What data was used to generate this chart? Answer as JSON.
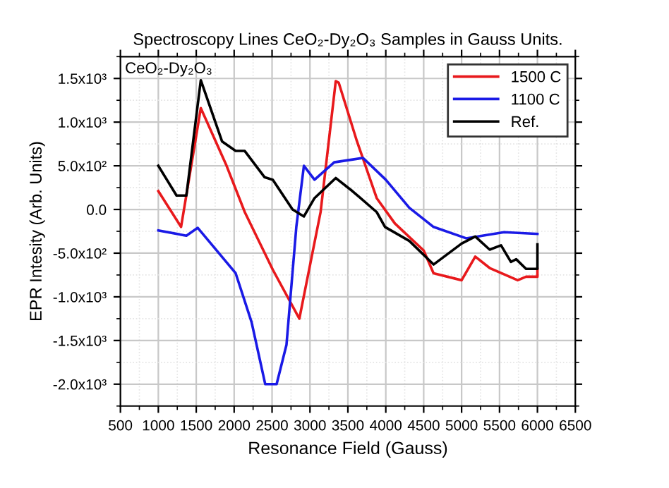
{
  "chart_data": {
    "type": "line",
    "title": "Spectroscopy Lines CeO₂-Dy₂O₃ Samples in Gauss Units.",
    "xlabel": "Resonance Field (Gauss)",
    "ylabel": "EPR Intesity (Arb. Units)",
    "annotations": [
      "CeO₂-Dy₂O₃"
    ],
    "series": [
      {
        "name": "1500 C",
        "color": "#e8191c",
        "x": [
          1000,
          1300,
          1560,
          1900,
          2140,
          2510,
          2860,
          3140,
          3340,
          3380,
          3620,
          3880,
          4120,
          4500,
          4630,
          5000,
          5180,
          5370,
          5740,
          5850,
          6000,
          6000
        ],
        "values": [
          210,
          -200,
          1160,
          500,
          -30,
          -690,
          -1250,
          -30,
          1470,
          1450,
          780,
          130,
          -160,
          -470,
          -730,
          -810,
          -540,
          -670,
          -810,
          -770,
          -770,
          -680
        ]
      },
      {
        "name": "1100 C",
        "color": "#1a1ae6",
        "x": [
          1000,
          1370,
          1520,
          2020,
          2230,
          2410,
          2560,
          2690,
          2820,
          2920,
          3060,
          3320,
          3700,
          4000,
          4310,
          4630,
          5060,
          5560,
          6000
        ],
        "values": [
          -240,
          -300,
          -210,
          -730,
          -1290,
          -2000,
          -2000,
          -1550,
          -200,
          500,
          340,
          540,
          590,
          340,
          20,
          -200,
          -330,
          -260,
          -280
        ]
      },
      {
        "name": "Ref.",
        "color": "#000000",
        "x": [
          1000,
          1240,
          1370,
          1560,
          1840,
          2020,
          2140,
          2400,
          2510,
          2770,
          2920,
          3060,
          3340,
          3560,
          3880,
          3990,
          4310,
          4630,
          5000,
          5180,
          5370,
          5520,
          5650,
          5720,
          5850,
          6000,
          6000
        ],
        "values": [
          500,
          160,
          160,
          1480,
          780,
          670,
          670,
          370,
          340,
          0,
          -80,
          130,
          360,
          210,
          -30,
          -200,
          -360,
          -630,
          -390,
          -310,
          -460,
          -410,
          -600,
          -570,
          -680,
          -680,
          -400
        ]
      }
    ],
    "xlim": [
      500,
      6500
    ],
    "xticks": [
      500,
      1000,
      1500,
      2000,
      2500,
      3000,
      3500,
      4000,
      4500,
      5000,
      5500,
      6000,
      6500
    ],
    "ylim": [
      -2250,
      1750
    ],
    "yticks": [
      {
        "value": -2000,
        "label": "-2.0x10³"
      },
      {
        "value": -1500,
        "label": "-1.5x10³"
      },
      {
        "value": -1000,
        "label": "-1.0x10³"
      },
      {
        "value": -500,
        "label": "-5.0x10²"
      },
      {
        "value": 0,
        "label": "0.0"
      },
      {
        "value": 500,
        "label": "5.0x10²"
      },
      {
        "value": 1000,
        "label": "1.0x10³"
      },
      {
        "value": 1500,
        "label": "1.5x10³"
      }
    ],
    "grid": true,
    "legend": "top right",
    "marker": "none",
    "line_style": "solid"
  }
}
